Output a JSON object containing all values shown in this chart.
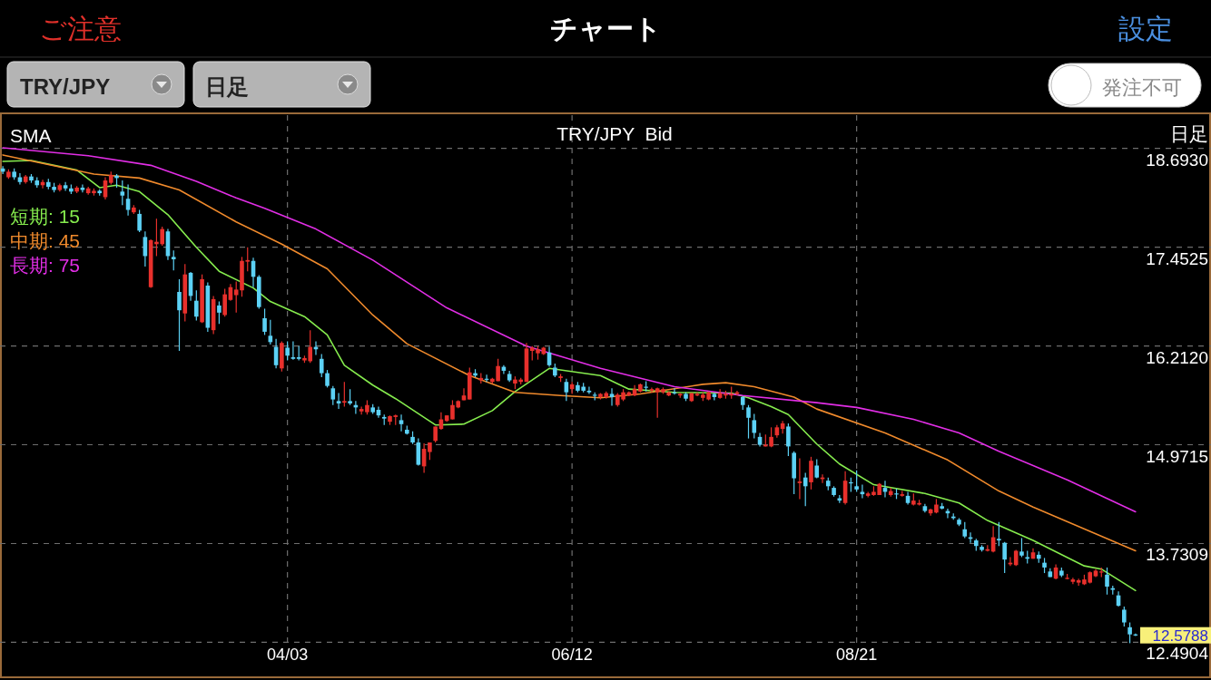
{
  "chart_data": {
    "type": "candlestick",
    "title": "TRY/JPY  Bid",
    "categories": [
      null,
      null,
      null,
      null,
      null,
      null,
      null,
      null,
      null,
      null,
      null,
      null,
      null,
      null,
      null,
      null,
      null,
      null,
      null,
      null,
      null,
      null,
      null,
      null,
      null,
      null,
      null,
      null,
      null,
      null,
      null,
      null,
      null,
      null,
      null,
      null,
      null,
      null,
      null,
      null,
      null,
      null,
      null,
      null,
      null,
      null,
      null,
      null,
      null,
      null,
      "04/03",
      null,
      null,
      null,
      null,
      null,
      null,
      null,
      null,
      null,
      null,
      null,
      null,
      null,
      null,
      null,
      null,
      null,
      null,
      null,
      null,
      null,
      null,
      null,
      null,
      null,
      null,
      null,
      null,
      null,
      null,
      null,
      null,
      null,
      null,
      null,
      null,
      null,
      null,
      null,
      null,
      null,
      null,
      null,
      null,
      null,
      null,
      null,
      null,
      null,
      "06/12",
      null,
      null,
      null,
      null,
      null,
      null,
      null,
      null,
      null,
      null,
      null,
      null,
      null,
      null,
      null,
      null,
      null,
      null,
      null,
      null,
      null,
      null,
      null,
      null,
      null,
      null,
      null,
      null,
      null,
      null,
      null,
      null,
      null,
      null,
      null,
      null,
      null,
      null,
      null,
      null,
      null,
      null,
      null,
      null,
      null,
      null,
      null,
      null,
      null,
      "08/21",
      null,
      null,
      null,
      null,
      null,
      null,
      null,
      null,
      null,
      null,
      null,
      null,
      null,
      null,
      null,
      null,
      null,
      null,
      null,
      null,
      null,
      null,
      null,
      null,
      null,
      null,
      null,
      null,
      null,
      null,
      null,
      null,
      null,
      null,
      null,
      null,
      null,
      null,
      null,
      null,
      null,
      null,
      null,
      null,
      null,
      null,
      null,
      null,
      null
    ],
    "ohlc": [
      [
        18.44,
        18.47,
        18.37,
        18.4
      ],
      [
        18.33,
        18.43,
        18.31,
        18.4
      ],
      [
        18.4,
        18.44,
        18.3,
        18.33
      ],
      [
        18.33,
        18.38,
        18.24,
        18.27
      ],
      [
        18.27,
        18.36,
        18.25,
        18.34
      ],
      [
        18.34,
        18.37,
        18.26,
        18.29
      ],
      [
        18.29,
        18.33,
        18.2,
        18.23
      ],
      [
        18.23,
        18.3,
        18.19,
        18.27
      ],
      [
        18.27,
        18.31,
        18.18,
        18.21
      ],
      [
        18.21,
        18.26,
        18.14,
        18.17
      ],
      [
        18.17,
        18.25,
        18.15,
        18.23
      ],
      [
        18.23,
        18.27,
        18.16,
        18.19
      ],
      [
        18.19,
        18.24,
        18.12,
        18.15
      ],
      [
        18.15,
        18.22,
        18.13,
        18.2
      ],
      [
        18.2,
        18.24,
        18.14,
        18.17
      ],
      [
        18.13,
        18.21,
        18.11,
        18.19
      ],
      [
        18.13,
        18.19,
        18.1,
        18.16
      ],
      [
        18.16,
        18.18,
        18.1,
        18.13
      ],
      [
        18.08,
        18.33,
        18.05,
        18.29
      ],
      [
        18.26,
        18.4,
        18.24,
        18.36
      ],
      [
        18.35,
        18.37,
        18.2,
        18.32
      ],
      [
        18.15,
        18.29,
        17.98,
        18.1
      ],
      [
        18.06,
        18.24,
        17.85,
        17.92
      ],
      [
        17.89,
        17.98,
        17.87,
        17.95
      ],
      [
        17.87,
        17.92,
        17.64,
        17.66
      ],
      [
        17.58,
        17.65,
        17.21,
        17.34
      ],
      [
        16.95,
        17.55,
        16.94,
        17.54
      ],
      [
        17.49,
        17.81,
        17.34,
        17.52
      ],
      [
        17.49,
        17.71,
        17.47,
        17.68
      ],
      [
        17.65,
        17.68,
        17.29,
        17.34
      ],
      [
        17.33,
        17.41,
        17.16,
        17.3
      ],
      [
        16.89,
        17.05,
        16.15,
        16.66
      ],
      [
        16.62,
        17.24,
        16.52,
        17.11
      ],
      [
        17.13,
        17.14,
        16.78,
        16.84
      ],
      [
        16.78,
        16.91,
        16.53,
        16.58
      ],
      [
        16.51,
        17.11,
        16.5,
        17.05
      ],
      [
        16.97,
        17.01,
        16.39,
        16.44
      ],
      [
        16.41,
        16.84,
        16.36,
        16.8
      ],
      [
        16.72,
        16.77,
        16.49,
        16.63
      ],
      [
        16.6,
        16.93,
        16.58,
        16.86
      ],
      [
        16.79,
        16.99,
        16.78,
        16.95
      ],
      [
        16.85,
        17.02,
        16.63,
        16.92
      ],
      [
        16.91,
        17.33,
        16.83,
        17.28
      ],
      [
        17.27,
        17.45,
        17.15,
        17.29
      ],
      [
        17.28,
        17.32,
        16.95,
        17.08
      ],
      [
        17.08,
        17.1,
        16.68,
        16.7
      ],
      [
        16.56,
        16.68,
        16.35,
        16.39
      ],
      [
        16.34,
        16.54,
        16.23,
        16.26
      ],
      [
        16.2,
        16.3,
        15.93,
        15.97
      ],
      [
        15.93,
        16.27,
        15.89,
        16.25
      ],
      [
        16.19,
        16.27,
        16.03,
        16.09
      ],
      [
        16.07,
        16.27,
        16.04,
        16.05
      ],
      [
        16.07,
        16.21,
        16.03,
        16.05
      ],
      [
        16.03,
        16.09,
        16.0,
        16.06
      ],
      [
        16.02,
        16.41,
        16.0,
        16.2
      ],
      [
        16.2,
        16.27,
        16.1,
        16.17
      ],
      [
        16.05,
        16.11,
        15.82,
        15.87
      ],
      [
        15.87,
        15.91,
        15.69,
        15.71
      ],
      [
        15.68,
        15.71,
        15.47,
        15.54
      ],
      [
        15.52,
        15.62,
        15.42,
        15.49
      ],
      [
        15.5,
        15.76,
        15.45,
        15.52
      ],
      [
        15.52,
        15.67,
        15.47,
        15.49
      ],
      [
        15.47,
        15.52,
        15.36,
        15.44
      ],
      [
        15.39,
        15.45,
        15.35,
        15.42
      ],
      [
        15.38,
        15.53,
        15.35,
        15.47
      ],
      [
        15.44,
        15.48,
        15.36,
        15.38
      ],
      [
        15.41,
        15.45,
        15.31,
        15.34
      ],
      [
        15.32,
        15.35,
        15.22,
        15.3
      ],
      [
        15.26,
        15.34,
        15.22,
        15.33
      ],
      [
        15.32,
        15.35,
        15.22,
        15.34
      ],
      [
        15.28,
        15.35,
        15.14,
        15.23
      ],
      [
        15.16,
        15.21,
        15.1,
        15.11
      ],
      [
        15.07,
        15.14,
        14.98,
        15.0
      ],
      [
        15.0,
        15.05,
        14.71,
        14.72
      ],
      [
        14.7,
        14.99,
        14.62,
        14.92
      ],
      [
        14.88,
        15.0,
        14.78,
        15.0
      ],
      [
        15.02,
        15.2,
        15.0,
        15.2
      ],
      [
        15.17,
        15.38,
        15.16,
        15.29
      ],
      [
        15.27,
        15.34,
        15.26,
        15.34
      ],
      [
        15.29,
        15.53,
        15.29,
        15.47
      ],
      [
        15.44,
        15.53,
        15.43,
        15.52
      ],
      [
        15.53,
        15.68,
        15.53,
        15.59
      ],
      [
        15.54,
        15.94,
        15.54,
        15.88
      ],
      [
        15.87,
        15.92,
        15.82,
        15.84
      ],
      [
        15.78,
        15.87,
        15.74,
        15.81
      ],
      [
        15.8,
        15.85,
        15.76,
        15.79
      ],
      [
        15.76,
        15.81,
        15.74,
        15.8
      ],
      [
        15.77,
        16.05,
        15.77,
        15.96
      ],
      [
        15.95,
        15.97,
        15.86,
        15.9
      ],
      [
        15.86,
        15.9,
        15.76,
        15.78
      ],
      [
        15.74,
        15.83,
        15.67,
        15.79
      ],
      [
        15.76,
        15.81,
        15.73,
        15.79
      ],
      [
        15.76,
        16.25,
        15.76,
        16.18
      ],
      [
        16.15,
        16.21,
        16.03,
        16.19
      ],
      [
        16.12,
        16.21,
        16.04,
        16.17
      ],
      [
        16.11,
        16.2,
        16.1,
        16.19
      ],
      [
        16.13,
        16.2,
        15.95,
        15.97
      ],
      [
        15.94,
        15.99,
        15.82,
        15.84
      ],
      [
        15.81,
        15.86,
        15.76,
        15.83
      ],
      [
        15.76,
        15.8,
        15.52,
        15.63
      ],
      [
        15.67,
        15.76,
        15.61,
        15.73
      ],
      [
        15.72,
        15.76,
        15.63,
        15.65
      ],
      [
        15.7,
        15.75,
        15.63,
        15.65
      ],
      [
        15.65,
        15.7,
        15.61,
        15.63
      ],
      [
        15.6,
        15.63,
        15.53,
        15.59
      ],
      [
        15.57,
        15.62,
        15.54,
        15.61
      ],
      [
        15.57,
        15.64,
        15.55,
        15.62
      ],
      [
        15.61,
        15.68,
        15.46,
        15.57
      ],
      [
        15.47,
        15.62,
        15.45,
        15.6
      ],
      [
        15.54,
        15.67,
        15.52,
        15.63
      ],
      [
        15.59,
        15.64,
        15.58,
        15.63
      ],
      [
        15.59,
        15.72,
        15.58,
        15.67
      ],
      [
        15.64,
        15.74,
        15.63,
        15.73
      ],
      [
        15.7,
        15.77,
        15.64,
        15.69
      ],
      [
        15.65,
        15.69,
        15.63,
        15.67
      ],
      [
        15.63,
        15.69,
        15.31,
        15.68
      ],
      [
        15.63,
        15.69,
        15.61,
        15.67
      ],
      [
        15.59,
        15.64,
        15.58,
        15.63
      ],
      [
        15.63,
        15.68,
        15.6,
        15.62
      ],
      [
        15.59,
        15.62,
        15.56,
        15.61
      ],
      [
        15.61,
        15.63,
        15.52,
        15.55
      ],
      [
        15.52,
        15.62,
        15.51,
        15.62
      ],
      [
        15.59,
        15.63,
        15.58,
        15.61
      ],
      [
        15.56,
        15.63,
        15.52,
        15.6
      ],
      [
        15.54,
        15.64,
        15.53,
        15.63
      ],
      [
        15.61,
        15.62,
        15.53,
        15.57
      ],
      [
        15.56,
        15.67,
        15.55,
        15.62
      ],
      [
        15.59,
        15.65,
        15.55,
        15.61
      ],
      [
        15.59,
        15.7,
        15.55,
        15.61
      ],
      [
        15.61,
        15.65,
        15.59,
        15.63
      ],
      [
        15.57,
        15.58,
        15.41,
        15.47
      ],
      [
        15.44,
        15.47,
        15.05,
        15.31
      ],
      [
        15.28,
        15.36,
        15.05,
        15.12
      ],
      [
        15.07,
        15.12,
        14.95,
        14.97
      ],
      [
        14.95,
        15.1,
        14.95,
        14.97
      ],
      [
        14.95,
        15.19,
        14.94,
        15.07
      ],
      [
        15.09,
        15.22,
        15.06,
        15.19
      ],
      [
        15.17,
        15.27,
        15.11,
        15.24
      ],
      [
        15.2,
        15.24,
        14.83,
        14.95
      ],
      [
        14.87,
        14.89,
        14.35,
        14.55
      ],
      [
        14.49,
        14.8,
        14.29,
        14.51
      ],
      [
        14.56,
        14.62,
        14.2,
        14.45
      ],
      [
        14.5,
        14.82,
        14.41,
        14.77
      ],
      [
        14.71,
        14.79,
        14.55,
        14.56
      ],
      [
        14.54,
        14.6,
        14.49,
        14.56
      ],
      [
        14.52,
        14.56,
        14.4,
        14.45
      ],
      [
        14.43,
        14.45,
        14.32,
        14.34
      ],
      [
        14.3,
        14.34,
        14.24,
        14.27
      ],
      [
        14.24,
        14.64,
        14.22,
        14.52
      ],
      [
        14.5,
        14.56,
        14.38,
        14.49
      ],
      [
        14.45,
        14.65,
        14.38,
        14.41
      ],
      [
        14.38,
        14.47,
        14.3,
        14.35
      ],
      [
        14.33,
        14.38,
        14.31,
        14.36
      ],
      [
        14.34,
        14.45,
        14.33,
        14.38
      ],
      [
        14.34,
        14.49,
        14.34,
        14.48
      ],
      [
        14.43,
        14.52,
        14.31,
        14.38
      ],
      [
        14.34,
        14.43,
        14.32,
        14.39
      ],
      [
        14.36,
        14.42,
        14.29,
        14.35
      ],
      [
        14.33,
        14.39,
        14.32,
        14.35
      ],
      [
        14.33,
        14.38,
        14.22,
        14.24
      ],
      [
        14.22,
        14.36,
        14.21,
        14.27
      ],
      [
        14.22,
        14.28,
        14.21,
        14.24
      ],
      [
        14.2,
        14.23,
        14.12,
        14.14
      ],
      [
        14.11,
        14.17,
        14.08,
        14.16
      ],
      [
        14.12,
        14.29,
        14.11,
        14.22
      ],
      [
        14.2,
        14.24,
        14.16,
        14.17
      ],
      [
        14.14,
        14.17,
        14.05,
        14.11
      ],
      [
        14.07,
        14.11,
        14.03,
        14.05
      ],
      [
        14.03,
        14.05,
        13.95,
        13.97
      ],
      [
        13.91,
        14.0,
        13.8,
        13.82
      ],
      [
        13.81,
        13.87,
        13.74,
        13.79
      ],
      [
        13.77,
        13.79,
        13.64,
        13.7
      ],
      [
        13.69,
        13.71,
        13.63,
        13.65
      ],
      [
        13.64,
        13.71,
        13.63,
        13.66
      ],
      [
        13.63,
        13.95,
        13.62,
        13.81
      ],
      [
        13.79,
        14.0,
        13.7,
        13.77
      ],
      [
        13.74,
        13.75,
        13.36,
        13.53
      ],
      [
        13.47,
        13.56,
        13.45,
        13.49
      ],
      [
        13.46,
        13.65,
        13.45,
        13.64
      ],
      [
        13.63,
        13.8,
        13.56,
        13.58
      ],
      [
        13.56,
        13.64,
        13.48,
        13.54
      ],
      [
        13.54,
        13.67,
        13.54,
        13.62
      ],
      [
        13.59,
        13.63,
        13.49,
        13.54
      ],
      [
        13.49,
        13.55,
        13.36,
        13.43
      ],
      [
        13.38,
        13.42,
        13.31,
        13.31
      ],
      [
        13.29,
        13.47,
        13.28,
        13.43
      ],
      [
        13.39,
        13.43,
        13.31,
        13.33
      ],
      [
        13.29,
        13.35,
        13.28,
        13.3
      ],
      [
        13.25,
        13.3,
        13.22,
        13.28
      ],
      [
        13.24,
        13.29,
        13.2,
        13.27
      ],
      [
        13.22,
        13.34,
        13.21,
        13.28
      ],
      [
        13.24,
        13.38,
        13.23,
        13.37
      ],
      [
        13.32,
        13.41,
        13.31,
        13.39
      ],
      [
        13.37,
        13.43,
        13.31,
        13.38
      ],
      [
        13.34,
        13.43,
        13.09,
        13.19
      ],
      [
        13.17,
        13.2,
        13.09,
        13.15
      ],
      [
        13.08,
        13.13,
        12.94,
        12.95
      ],
      [
        12.9,
        12.94,
        12.69,
        12.74
      ],
      [
        12.68,
        12.74,
        12.48,
        12.59
      ],
      [
        12.59,
        12.6,
        12.57,
        12.5788
      ]
    ],
    "colors": [
      "#5cd1f5",
      "#e8302c",
      "#5cd1f5",
      "#5cd1f5",
      "#e8302c",
      "#5cd1f5",
      "#5cd1f5",
      "#e8302c",
      "#5cd1f5",
      "#5cd1f5",
      "#e8302c",
      "#5cd1f5",
      "#5cd1f5",
      "#e8302c",
      "#5cd1f5",
      "#e8302c",
      "#e8302c",
      "#5cd1f5",
      "#e8302c",
      "#e8302c",
      "#5cd1f5",
      "#5cd1f5",
      "#5cd1f5",
      "#e8302c",
      "#5cd1f5",
      "#5cd1f5",
      "#e8302c",
      "#e8302c",
      "#e8302c",
      "#5cd1f5",
      "#5cd1f5",
      "#5cd1f5",
      "#e8302c",
      "#5cd1f5",
      "#5cd1f5",
      "#e8302c",
      "#5cd1f5",
      "#e8302c",
      "#5cd1f5",
      "#e8302c",
      "#e8302c",
      "#e8302c",
      "#e8302c",
      "#e8302c",
      "#5cd1f5",
      "#5cd1f5",
      "#5cd1f5",
      "#5cd1f5",
      "#5cd1f5",
      "#e8302c",
      "#5cd1f5",
      "#5cd1f5",
      "#5cd1f5",
      "#e8302c",
      "#e8302c",
      "#5cd1f5",
      "#5cd1f5",
      "#5cd1f5",
      "#5cd1f5",
      "#5cd1f5",
      "#e8302c",
      "#5cd1f5",
      "#5cd1f5",
      "#e8302c",
      "#e8302c",
      "#5cd1f5",
      "#5cd1f5",
      "#5cd1f5",
      "#e8302c",
      "#e8302c",
      "#5cd1f5",
      "#5cd1f5",
      "#5cd1f5",
      "#5cd1f5",
      "#e8302c",
      "#e8302c",
      "#e8302c",
      "#e8302c",
      "#e8302c",
      "#e8302c",
      "#e8302c",
      "#e8302c",
      "#e8302c",
      "#5cd1f5",
      "#e8302c",
      "#5cd1f5",
      "#e8302c",
      "#e8302c",
      "#5cd1f5",
      "#5cd1f5",
      "#e8302c",
      "#e8302c",
      "#e8302c",
      "#e8302c",
      "#e8302c",
      "#e8302c",
      "#5cd1f5",
      "#5cd1f5",
      "#e8302c",
      "#5cd1f5",
      "#e8302c",
      "#5cd1f5",
      "#5cd1f5",
      "#5cd1f5",
      "#5cd1f5",
      "#e8302c",
      "#e8302c",
      "#5cd1f5",
      "#e8302c",
      "#e8302c",
      "#e8302c",
      "#e8302c",
      "#e8302c",
      "#5cd1f5",
      "#e8302c",
      "#e8302c",
      "#e8302c",
      "#e8302c",
      "#5cd1f5",
      "#e8302c",
      "#5cd1f5",
      "#e8302c",
      "#e8302c",
      "#e8302c",
      "#e8302c",
      "#5cd1f5",
      "#e8302c",
      "#e8302c",
      "#e8302c",
      "#e8302c",
      "#5cd1f5",
      "#5cd1f5",
      "#5cd1f5",
      "#5cd1f5",
      "#e8302c",
      "#e8302c",
      "#e8302c",
      "#e8302c",
      "#5cd1f5",
      "#5cd1f5",
      "#e8302c",
      "#5cd1f5",
      "#e8302c",
      "#5cd1f5",
      "#e8302c",
      "#5cd1f5",
      "#5cd1f5",
      "#5cd1f5",
      "#e8302c",
      "#5cd1f5",
      "#5cd1f5",
      "#5cd1f5",
      "#e8302c",
      "#e8302c",
      "#e8302c",
      "#5cd1f5",
      "#e8302c",
      "#5cd1f5",
      "#e8302c",
      "#5cd1f5",
      "#e8302c",
      "#e8302c",
      "#5cd1f5",
      "#e8302c",
      "#e8302c",
      "#5cd1f5",
      "#5cd1f5",
      "#5cd1f5",
      "#5cd1f5",
      "#5cd1f5",
      "#5cd1f5",
      "#5cd1f5",
      "#5cd1f5",
      "#e8302c",
      "#e8302c",
      "#5cd1f5",
      "#5cd1f5",
      "#e8302c",
      "#e8302c",
      "#5cd1f5",
      "#5cd1f5",
      "#e8302c",
      "#5cd1f5",
      "#5cd1f5",
      "#5cd1f5",
      "#e8302c",
      "#5cd1f5",
      "#e8302c",
      "#e8302c",
      "#e8302c",
      "#e8302c",
      "#e8302c",
      "#e8302c",
      "#e8302c",
      "#5cd1f5",
      "#5cd1f5",
      "#5cd1f5",
      "#5cd1f5",
      "#5cd1f5",
      "#5cd1f5"
    ],
    "series": [
      {
        "name": "短期: 15",
        "type": "line",
        "color": "#86ec4e",
        "values": [
          18.53,
          null,
          null,
          null,
          null,
          18.54,
          null,
          null,
          null,
          null,
          null,
          null,
          null,
          18.42,
          null,
          null,
          null,
          18.2,
          null,
          null,
          18.23,
          null,
          null,
          null,
          18.15,
          null,
          null,
          null,
          null,
          17.86,
          null,
          null,
          null,
          null,
          17.45,
          null,
          null,
          null,
          17.15,
          null,
          null,
          null,
          null,
          null,
          16.94,
          null,
          null,
          16.77,
          null,
          null,
          null,
          null,
          null,
          16.58,
          null,
          null,
          null,
          16.35,
          null,
          null,
          15.97,
          null,
          null,
          null,
          null,
          15.72,
          null,
          null,
          null,
          15.55,
          null,
          null,
          null,
          null,
          null,
          null,
          15.22,
          null,
          null,
          null,
          null,
          15.23,
          null,
          null,
          null,
          null,
          15.4,
          null,
          null,
          null,
          15.64,
          null,
          null,
          null,
          null,
          null,
          15.93,
          null,
          null,
          null,
          null,
          null,
          null,
          null,
          null,
          15.84,
          null,
          null,
          null,
          null,
          15.67,
          null,
          null,
          null,
          null,
          null,
          null,
          null,
          15.63,
          null,
          null,
          null,
          null,
          null,
          null,
          null,
          null,
          null,
          15.62,
          null,
          null,
          15.56,
          null,
          null,
          null,
          15.45,
          null,
          null,
          15.35,
          null,
          null,
          null,
          null,
          14.98,
          null,
          null,
          null,
          14.73,
          null,
          null,
          null,
          null,
          null,
          14.47,
          null,
          null,
          null,
          null,
          null,
          null,
          null,
          null,
          14.36,
          null,
          null,
          null,
          null,
          null,
          14.24,
          null,
          null,
          null,
          null,
          14.02,
          null,
          null,
          null,
          null,
          null,
          null,
          null,
          13.77,
          null,
          null,
          null,
          null,
          null,
          null,
          null,
          null,
          13.45,
          null,
          null,
          13.41,
          null,
          null,
          null,
          null,
          null,
          13.14
        ]
      },
      {
        "name": "中期: 45",
        "type": "line",
        "color": "#f08a2c",
        "values": [
          18.61,
          null,
          null,
          null,
          null,
          null,
          null,
          null,
          null,
          null,
          null,
          null,
          null,
          null,
          null,
          null,
          18.37,
          null,
          null,
          null,
          null,
          null,
          null,
          null,
          18.32,
          null,
          null,
          null,
          null,
          null,
          null,
          18.17,
          null,
          null,
          null,
          null,
          null,
          null,
          null,
          null,
          null,
          17.77,
          null,
          null,
          null,
          null,
          null,
          null,
          null,
          17.49,
          null,
          null,
          null,
          null,
          null,
          null,
          null,
          17.18,
          null,
          null,
          null,
          null,
          null,
          null,
          null,
          16.6,
          null,
          null,
          null,
          null,
          null,
          16.24,
          null,
          null,
          null,
          null,
          null,
          null,
          null,
          null,
          null,
          null,
          15.84,
          null,
          null,
          null,
          null,
          null,
          null,
          null,
          15.63,
          null,
          null,
          null,
          null,
          null,
          null,
          null,
          15.59,
          null,
          null,
          null,
          null,
          null,
          null,
          15.56,
          null,
          null,
          null,
          null,
          null,
          null,
          15.61,
          null,
          null,
          null,
          null,
          null,
          null,
          null,
          null,
          null,
          null,
          15.73,
          null,
          null,
          null,
          15.75,
          null,
          null,
          null,
          null,
          15.7,
          null,
          null,
          null,
          null,
          null,
          null,
          15.57,
          null,
          null,
          null,
          15.42,
          null,
          null,
          null,
          null,
          null,
          null,
          null,
          null,
          null,
          null,
          null,
          15.12,
          null,
          null,
          null,
          null,
          null,
          null,
          null,
          null,
          null,
          null,
          14.78,
          null,
          null,
          null,
          null,
          null,
          null,
          null,
          null,
          14.39,
          null,
          null,
          null,
          null,
          null,
          14.19,
          null,
          null,
          null,
          null,
          null,
          null,
          null,
          null,
          null,
          null,
          null,
          null,
          null,
          null,
          null,
          null,
          null,
          13.64
        ]
      },
      {
        "name": "長期: 75",
        "type": "line",
        "color": "#e22ee6",
        "values": [
          18.7,
          null,
          null,
          null,
          null,
          null,
          null,
          null,
          null,
          null,
          null,
          null,
          null,
          null,
          null,
          18.6,
          null,
          null,
          null,
          null,
          null,
          null,
          null,
          null,
          null,
          null,
          18.48,
          null,
          null,
          null,
          null,
          null,
          null,
          null,
          18.28,
          null,
          null,
          null,
          null,
          null,
          null,
          18.07,
          null,
          null,
          null,
          null,
          17.94,
          null,
          null,
          null,
          null,
          null,
          null,
          null,
          null,
          17.68,
          null,
          null,
          null,
          null,
          null,
          null,
          null,
          null,
          null,
          17.29,
          null,
          null,
          null,
          null,
          null,
          null,
          null,
          null,
          null,
          null,
          null,
          null,
          16.69,
          null,
          null,
          null,
          null,
          null,
          null,
          null,
          null,
          null,
          null,
          null,
          null,
          null,
          16.21,
          null,
          null,
          null,
          null,
          null,
          null,
          null,
          null,
          null,
          null,
          null,
          null,
          15.93,
          null,
          null,
          null,
          null,
          null,
          null,
          null,
          null,
          null,
          null,
          null,
          null,
          15.7,
          null,
          null,
          null,
          null,
          null,
          null,
          null,
          null,
          null,
          null,
          null,
          15.59,
          null,
          null,
          null,
          null,
          null,
          null,
          null,
          null,
          null,
          null,
          null,
          null,
          15.5,
          null,
          null,
          null,
          null,
          null,
          null,
          15.44,
          null,
          null,
          null,
          null,
          null,
          null,
          null,
          null,
          null,
          15.29,
          null,
          null,
          null,
          null,
          null,
          null,
          null,
          15.12,
          null,
          null,
          null,
          null,
          null,
          null,
          14.89,
          null,
          null,
          null,
          null,
          null,
          null,
          null,
          null,
          null,
          null,
          null,
          14.53,
          null,
          null,
          null,
          null,
          null,
          null,
          null,
          null,
          null,
          null,
          null,
          14.13
        ]
      }
    ],
    "ylim": [
      12.45,
      19.11
    ],
    "yticks": [
      {
        "value": 18.693,
        "label": "18.6930"
      },
      {
        "value": 17.4525,
        "label": "17.4525"
      },
      {
        "value": 16.212,
        "label": "16.2120"
      },
      {
        "value": 14.9715,
        "label": "14.9715"
      },
      {
        "value": 13.7309,
        "label": "13.7309"
      },
      {
        "value": 12.4904,
        "label": "12.4904"
      }
    ],
    "grid": true,
    "legend": "top left",
    "marker": "none",
    "line_style": "solid",
    "annotations": [
      "ご注意",
      "チャート",
      "設定",
      "TRY/JPY",
      "日足",
      "発注不可",
      "SMA",
      "日足",
      "12.5788"
    ]
  }
}
